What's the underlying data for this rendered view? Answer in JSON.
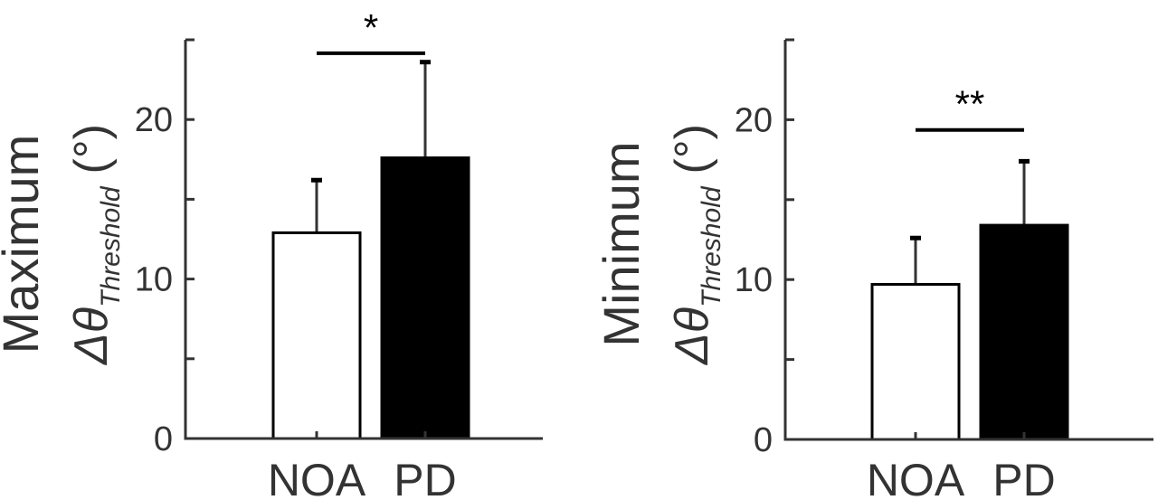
{
  "chart_data": [
    {
      "type": "bar",
      "ylabel_line1": "Maximum",
      "ylabel_symbol": "Δθ",
      "ylabel_subscript": "Threshold",
      "ylabel_unit": "(°)",
      "categories": [
        "NOA",
        "PD"
      ],
      "values": [
        12.9,
        17.6
      ],
      "errors": [
        3.3,
        6.0
      ],
      "bar_fills": [
        "#ffffff",
        "#000000"
      ],
      "ylim": [
        0,
        25
      ],
      "yticks": [
        0,
        5,
        10,
        15,
        20,
        25
      ],
      "ytick_labels": [
        "0",
        "",
        "10",
        "",
        "20",
        ""
      ],
      "significance": {
        "label": "*",
        "from": "NOA",
        "to": "PD",
        "y": 24.5
      }
    },
    {
      "type": "bar",
      "ylabel_line1": "Minimum",
      "ylabel_symbol": "Δθ",
      "ylabel_subscript": "Threshold",
      "ylabel_unit": "(°)",
      "categories": [
        "NOA",
        "PD"
      ],
      "values": [
        9.7,
        13.4
      ],
      "errors": [
        2.9,
        4.0
      ],
      "bar_fills": [
        "#ffffff",
        "#000000"
      ],
      "ylim": [
        0,
        25
      ],
      "yticks": [
        0,
        5,
        10,
        15,
        20,
        25
      ],
      "ytick_labels": [
        "0",
        "",
        "10",
        "",
        "20",
        ""
      ],
      "significance": {
        "label": "**",
        "from": "NOA",
        "to": "PD",
        "y": 19.7
      }
    }
  ]
}
